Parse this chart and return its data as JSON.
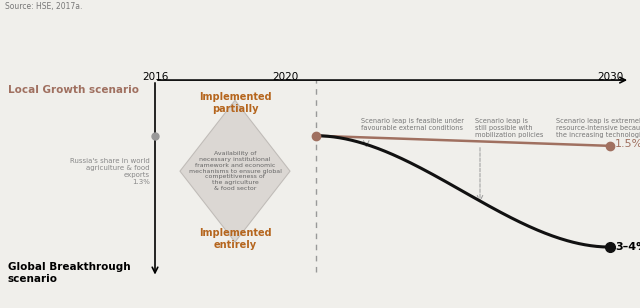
{
  "source_text": "Source: HSE, 2017a.",
  "global_label": "Global Breakthrough\nscenario",
  "local_label": "Local Growth scenario",
  "implemented_entirely": "Implemented\nentirely",
  "implemented_partially": "Implemented\npartially",
  "diamond_text": "Availability of\nnecessary institutional\nframework and economic\nmechanisms to ensure global\ncompetitiveness of\nthe agriculture\n& food sector",
  "russia_share_label": "Russia's share in world\nagriculture & food\nexports\n1.3%",
  "pct_high": "3–4%",
  "pct_low": "1.5%",
  "annotation1": "Scenario leap is feasible under\nfavourable external conditions",
  "annotation2": "Scenario leap is\nstill possible with\nmobilization policies",
  "annotation3": "Scenario leap is extremely\nresource-intensive because of\nthe increasing technological gap",
  "color_black": "#111111",
  "color_brown": "#a07060",
  "color_gray_dot": "#999999",
  "color_diamond": "#d4d0cc",
  "color_dashed": "#999999",
  "color_arrow": "#999999",
  "color_text_brown": "#b5651d",
  "bg_color": "#f0efeb"
}
